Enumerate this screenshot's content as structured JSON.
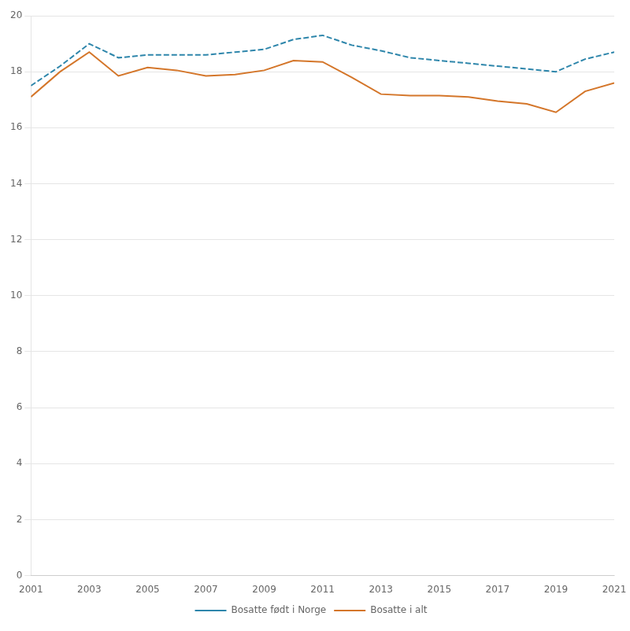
{
  "chart_data": {
    "type": "line",
    "x": [
      2001,
      2002,
      2003,
      2004,
      2005,
      2006,
      2007,
      2008,
      2009,
      2010,
      2011,
      2012,
      2013,
      2014,
      2015,
      2016,
      2017,
      2018,
      2019,
      2020,
      2021
    ],
    "series": [
      {
        "name": "Bosatte født i Norge",
        "color": "#2E86AB",
        "line_style": "dashed",
        "values": [
          17.5,
          18.2,
          19.0,
          18.5,
          18.6,
          18.6,
          18.6,
          18.7,
          18.8,
          19.15,
          19.3,
          18.95,
          18.75,
          18.5,
          18.4,
          18.3,
          18.2,
          18.1,
          18.0,
          18.45,
          18.7
        ]
      },
      {
        "name": "Bosatte i alt",
        "color": "#D4762A",
        "line_style": "solid",
        "values": [
          17.1,
          18.0,
          18.7,
          17.85,
          18.15,
          18.05,
          17.85,
          17.9,
          18.05,
          18.4,
          18.35,
          17.8,
          17.2,
          17.15,
          17.15,
          17.1,
          16.95,
          16.85,
          16.55,
          17.3,
          17.6
        ]
      }
    ],
    "xlim": [
      2001,
      2021
    ],
    "xticks": [
      2001,
      2003,
      2005,
      2007,
      2009,
      2011,
      2013,
      2015,
      2017,
      2019,
      2021
    ],
    "ylim": [
      0,
      20
    ],
    "yticks": [
      0,
      2,
      4,
      6,
      8,
      10,
      12,
      14,
      16,
      18,
      20
    ],
    "grid": "y",
    "legend": "bottom"
  }
}
